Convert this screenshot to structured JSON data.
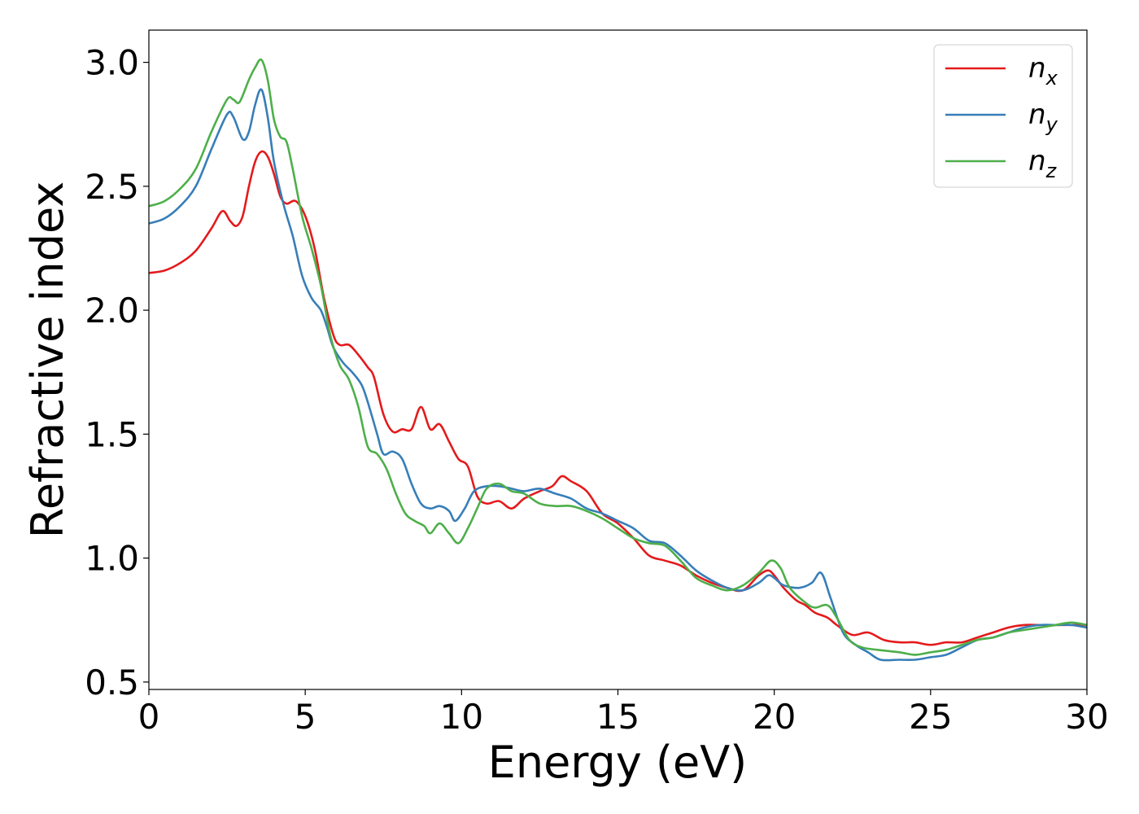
{
  "chart_data": {
    "type": "line",
    "title": "",
    "xlabel": "Energy (eV)",
    "ylabel": "Refractive index",
    "xlim": [
      0,
      30
    ],
    "ylim": [
      0.47,
      3.13
    ],
    "xticks": [
      0,
      5,
      10,
      15,
      20,
      25,
      30
    ],
    "xtick_labels": [
      "0",
      "5",
      "10",
      "15",
      "20",
      "25",
      "30"
    ],
    "yticks": [
      0.5,
      1.0,
      1.5,
      2.0,
      2.5,
      3.0
    ],
    "ytick_labels": [
      "0.5",
      "1.0",
      "1.5",
      "2.0",
      "2.5",
      "3.0"
    ],
    "grid": false,
    "legend_position": "top-right",
    "series": [
      {
        "name": "n_x",
        "label_main": "n",
        "label_sub": "x",
        "color": "#e41a1c",
        "points": [
          [
            0,
            2.15
          ],
          [
            0.5,
            2.16
          ],
          [
            1.0,
            2.19
          ],
          [
            1.5,
            2.24
          ],
          [
            2.0,
            2.33
          ],
          [
            2.35,
            2.4
          ],
          [
            2.6,
            2.36
          ],
          [
            2.8,
            2.34
          ],
          [
            3.0,
            2.38
          ],
          [
            3.2,
            2.5
          ],
          [
            3.4,
            2.6
          ],
          [
            3.6,
            2.64
          ],
          [
            3.8,
            2.62
          ],
          [
            4.0,
            2.55
          ],
          [
            4.2,
            2.46
          ],
          [
            4.4,
            2.43
          ],
          [
            4.7,
            2.44
          ],
          [
            5.0,
            2.38
          ],
          [
            5.3,
            2.25
          ],
          [
            5.6,
            2.05
          ],
          [
            5.9,
            1.9
          ],
          [
            6.1,
            1.86
          ],
          [
            6.4,
            1.86
          ],
          [
            6.7,
            1.82
          ],
          [
            7.0,
            1.77
          ],
          [
            7.2,
            1.73
          ],
          [
            7.5,
            1.58
          ],
          [
            7.8,
            1.51
          ],
          [
            8.1,
            1.52
          ],
          [
            8.4,
            1.52
          ],
          [
            8.7,
            1.61
          ],
          [
            9.0,
            1.52
          ],
          [
            9.3,
            1.54
          ],
          [
            9.6,
            1.47
          ],
          [
            9.9,
            1.4
          ],
          [
            10.2,
            1.37
          ],
          [
            10.5,
            1.25
          ],
          [
            10.8,
            1.22
          ],
          [
            11.2,
            1.23
          ],
          [
            11.6,
            1.2
          ],
          [
            12.0,
            1.24
          ],
          [
            12.5,
            1.27
          ],
          [
            12.9,
            1.29
          ],
          [
            13.2,
            1.33
          ],
          [
            13.5,
            1.31
          ],
          [
            14.0,
            1.27
          ],
          [
            14.5,
            1.18
          ],
          [
            15.0,
            1.14
          ],
          [
            15.5,
            1.08
          ],
          [
            16.0,
            1.01
          ],
          [
            16.5,
            0.99
          ],
          [
            17.0,
            0.97
          ],
          [
            17.5,
            0.93
          ],
          [
            18.0,
            0.9
          ],
          [
            18.5,
            0.88
          ],
          [
            19.0,
            0.87
          ],
          [
            19.5,
            0.93
          ],
          [
            19.8,
            0.95
          ],
          [
            20.0,
            0.93
          ],
          [
            20.3,
            0.88
          ],
          [
            20.7,
            0.83
          ],
          [
            21.0,
            0.81
          ],
          [
            21.3,
            0.78
          ],
          [
            21.7,
            0.76
          ],
          [
            22.0,
            0.73
          ],
          [
            22.5,
            0.69
          ],
          [
            23.0,
            0.7
          ],
          [
            23.5,
            0.67
          ],
          [
            24.0,
            0.66
          ],
          [
            24.5,
            0.66
          ],
          [
            25.0,
            0.65
          ],
          [
            25.5,
            0.66
          ],
          [
            26.0,
            0.66
          ],
          [
            26.5,
            0.68
          ],
          [
            27.0,
            0.7
          ],
          [
            27.5,
            0.72
          ],
          [
            28.0,
            0.73
          ],
          [
            28.5,
            0.73
          ],
          [
            29.0,
            0.73
          ],
          [
            29.5,
            0.73
          ],
          [
            30.0,
            0.73
          ]
        ]
      },
      {
        "name": "n_y",
        "label_main": "n",
        "label_sub": "y",
        "color": "#377eb8",
        "points": [
          [
            0,
            2.35
          ],
          [
            0.5,
            2.37
          ],
          [
            1.0,
            2.42
          ],
          [
            1.5,
            2.5
          ],
          [
            2.0,
            2.65
          ],
          [
            2.5,
            2.79
          ],
          [
            2.7,
            2.78
          ],
          [
            3.0,
            2.69
          ],
          [
            3.2,
            2.72
          ],
          [
            3.4,
            2.83
          ],
          [
            3.6,
            2.89
          ],
          [
            3.8,
            2.78
          ],
          [
            4.0,
            2.6
          ],
          [
            4.3,
            2.43
          ],
          [
            4.6,
            2.3
          ],
          [
            4.9,
            2.14
          ],
          [
            5.2,
            2.05
          ],
          [
            5.5,
            2.0
          ],
          [
            5.7,
            1.93
          ],
          [
            5.9,
            1.85
          ],
          [
            6.2,
            1.79
          ],
          [
            6.5,
            1.75
          ],
          [
            6.8,
            1.7
          ],
          [
            7.0,
            1.63
          ],
          [
            7.3,
            1.5
          ],
          [
            7.5,
            1.42
          ],
          [
            7.8,
            1.43
          ],
          [
            8.1,
            1.4
          ],
          [
            8.4,
            1.3
          ],
          [
            8.7,
            1.22
          ],
          [
            9.0,
            1.2
          ],
          [
            9.3,
            1.21
          ],
          [
            9.6,
            1.19
          ],
          [
            9.8,
            1.15
          ],
          [
            10.1,
            1.2
          ],
          [
            10.4,
            1.27
          ],
          [
            10.8,
            1.29
          ],
          [
            11.2,
            1.29
          ],
          [
            11.6,
            1.28
          ],
          [
            12.0,
            1.27
          ],
          [
            12.5,
            1.28
          ],
          [
            13.0,
            1.26
          ],
          [
            13.5,
            1.24
          ],
          [
            14.0,
            1.2
          ],
          [
            14.5,
            1.18
          ],
          [
            15.0,
            1.15
          ],
          [
            15.5,
            1.12
          ],
          [
            16.0,
            1.07
          ],
          [
            16.5,
            1.06
          ],
          [
            17.0,
            1.01
          ],
          [
            17.5,
            0.95
          ],
          [
            18.0,
            0.91
          ],
          [
            18.5,
            0.88
          ],
          [
            19.0,
            0.87
          ],
          [
            19.5,
            0.9
          ],
          [
            19.8,
            0.93
          ],
          [
            20.0,
            0.92
          ],
          [
            20.3,
            0.89
          ],
          [
            20.8,
            0.88
          ],
          [
            21.2,
            0.9
          ],
          [
            21.5,
            0.94
          ],
          [
            21.8,
            0.84
          ],
          [
            22.2,
            0.7
          ],
          [
            22.6,
            0.65
          ],
          [
            23.0,
            0.62
          ],
          [
            23.4,
            0.59
          ],
          [
            24.0,
            0.59
          ],
          [
            24.5,
            0.59
          ],
          [
            25.0,
            0.6
          ],
          [
            25.5,
            0.61
          ],
          [
            26.0,
            0.64
          ],
          [
            26.5,
            0.67
          ],
          [
            27.0,
            0.68
          ],
          [
            27.5,
            0.7
          ],
          [
            28.0,
            0.72
          ],
          [
            28.5,
            0.73
          ],
          [
            29.0,
            0.73
          ],
          [
            29.5,
            0.73
          ],
          [
            30.0,
            0.72
          ]
        ]
      },
      {
        "name": "n_z",
        "label_main": "n",
        "label_sub": "z",
        "color": "#4daf4a",
        "points": [
          [
            0,
            2.42
          ],
          [
            0.5,
            2.44
          ],
          [
            1.0,
            2.49
          ],
          [
            1.5,
            2.57
          ],
          [
            2.0,
            2.72
          ],
          [
            2.5,
            2.85
          ],
          [
            2.7,
            2.85
          ],
          [
            2.9,
            2.84
          ],
          [
            3.2,
            2.93
          ],
          [
            3.4,
            2.98
          ],
          [
            3.6,
            3.01
          ],
          [
            3.8,
            2.93
          ],
          [
            4.0,
            2.77
          ],
          [
            4.2,
            2.7
          ],
          [
            4.4,
            2.68
          ],
          [
            4.6,
            2.57
          ],
          [
            4.9,
            2.38
          ],
          [
            5.2,
            2.25
          ],
          [
            5.5,
            2.1
          ],
          [
            5.8,
            1.9
          ],
          [
            6.1,
            1.78
          ],
          [
            6.4,
            1.72
          ],
          [
            6.7,
            1.61
          ],
          [
            7.0,
            1.45
          ],
          [
            7.3,
            1.42
          ],
          [
            7.6,
            1.36
          ],
          [
            7.9,
            1.26
          ],
          [
            8.2,
            1.18
          ],
          [
            8.5,
            1.15
          ],
          [
            8.8,
            1.13
          ],
          [
            9.0,
            1.1
          ],
          [
            9.3,
            1.14
          ],
          [
            9.6,
            1.1
          ],
          [
            9.9,
            1.06
          ],
          [
            10.2,
            1.12
          ],
          [
            10.5,
            1.2
          ],
          [
            10.8,
            1.28
          ],
          [
            11.2,
            1.3
          ],
          [
            11.6,
            1.27
          ],
          [
            12.0,
            1.26
          ],
          [
            12.5,
            1.22
          ],
          [
            13.0,
            1.21
          ],
          [
            13.5,
            1.21
          ],
          [
            14.0,
            1.19
          ],
          [
            14.5,
            1.16
          ],
          [
            15.0,
            1.12
          ],
          [
            15.5,
            1.08
          ],
          [
            16.0,
            1.06
          ],
          [
            16.5,
            1.05
          ],
          [
            17.0,
            0.99
          ],
          [
            17.5,
            0.92
          ],
          [
            18.0,
            0.89
          ],
          [
            18.5,
            0.87
          ],
          [
            19.0,
            0.89
          ],
          [
            19.5,
            0.94
          ],
          [
            19.9,
            0.99
          ],
          [
            20.2,
            0.96
          ],
          [
            20.5,
            0.88
          ],
          [
            21.0,
            0.82
          ],
          [
            21.3,
            0.8
          ],
          [
            21.7,
            0.81
          ],
          [
            22.0,
            0.76
          ],
          [
            22.4,
            0.67
          ],
          [
            22.8,
            0.64
          ],
          [
            23.3,
            0.63
          ],
          [
            24.0,
            0.62
          ],
          [
            24.5,
            0.61
          ],
          [
            25.0,
            0.62
          ],
          [
            25.5,
            0.63
          ],
          [
            26.0,
            0.65
          ],
          [
            26.5,
            0.67
          ],
          [
            27.0,
            0.68
          ],
          [
            27.5,
            0.7
          ],
          [
            28.0,
            0.71
          ],
          [
            28.5,
            0.72
          ],
          [
            29.0,
            0.73
          ],
          [
            29.5,
            0.74
          ],
          [
            30.0,
            0.73
          ]
        ]
      }
    ]
  }
}
